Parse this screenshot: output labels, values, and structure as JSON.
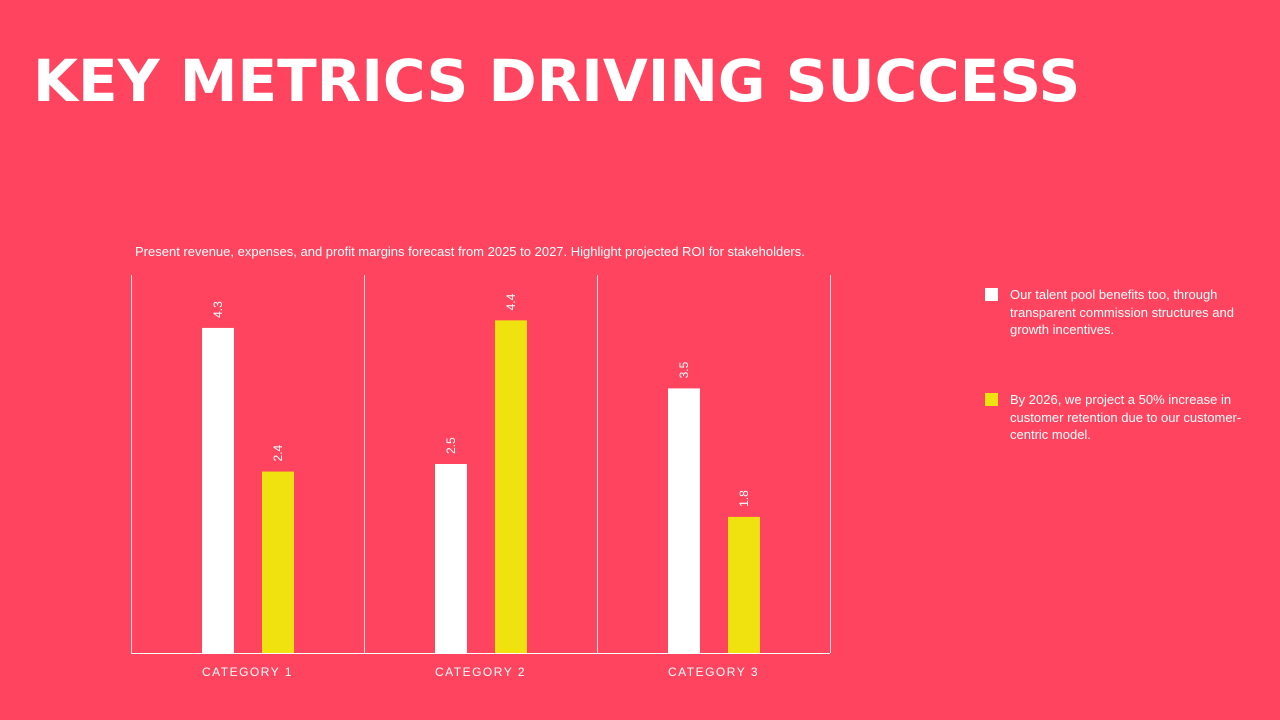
{
  "title": "KEY METRICS DRIVING SUCCESS",
  "chart_data": {
    "type": "bar",
    "title": "Present revenue, expenses, and profit margins forecast from 2025 to 2027. Highlight projected ROI for stakeholders.",
    "categories": [
      "CATEGORY 1",
      "CATEGORY 2",
      "CATEGORY 3"
    ],
    "series": [
      {
        "name": "Our talent pool benefits too, through transparent commission structures and growth incentives.",
        "color": "#ffffff",
        "values": [
          4.3,
          2.5,
          3.5
        ]
      },
      {
        "name": "By 2026, we project a 50% increase in customer retention due to our customer-centric model.",
        "color": "#f0e20f",
        "values": [
          2.4,
          4.4,
          1.8
        ]
      }
    ],
    "xlabel": "",
    "ylabel": "",
    "ylim": [
      0,
      5
    ],
    "grid": false,
    "legend": "right",
    "data_labels": true
  }
}
